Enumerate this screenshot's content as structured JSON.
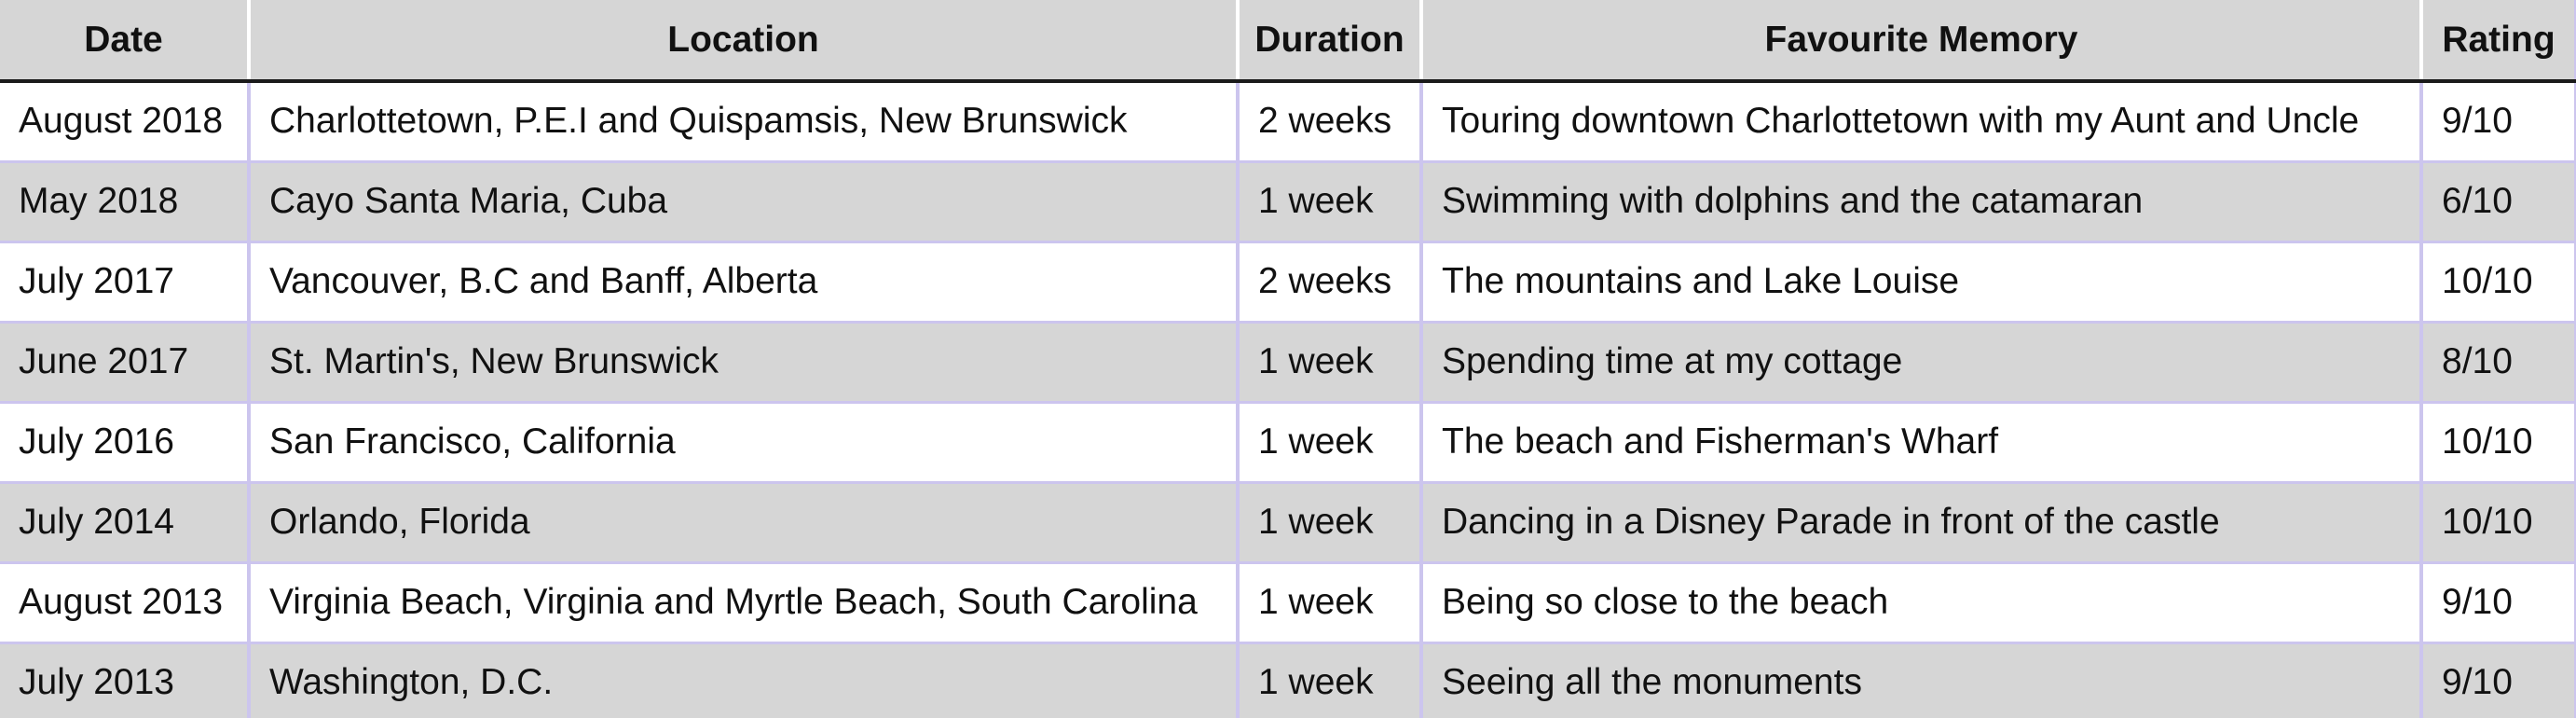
{
  "table": {
    "headers": [
      "Date",
      "Location",
      "Duration",
      "Favourite Memory",
      "Rating"
    ],
    "rows": [
      [
        "August 2018",
        "Charlottetown, P.E.I and Quispamsis, New Brunswick",
        "2 weeks",
        "Touring downtown Charlottetown with my Aunt and Uncle",
        "9/10"
      ],
      [
        "May 2018",
        "Cayo Santa Maria, Cuba",
        "1 week",
        "Swimming with dolphins and the catamaran",
        "6/10"
      ],
      [
        "July 2017",
        "Vancouver, B.C and Banff, Alberta",
        "2 weeks",
        "The mountains and Lake Louise",
        "10/10"
      ],
      [
        "June 2017",
        "St. Martin's, New Brunswick",
        "1 week",
        "Spending time at my cottage",
        "8/10"
      ],
      [
        "July 2016",
        "San Francisco, California",
        "1 week",
        "The beach and Fisherman's Wharf",
        "10/10"
      ],
      [
        "July 2014",
        "Orlando, Florida",
        "1 week",
        "Dancing in a Disney Parade in front of the castle",
        "10/10"
      ],
      [
        "August 2013",
        "Virginia Beach, Virginia and Myrtle Beach, South Carolina",
        "1 week",
        "Being so close to the beach",
        "9/10"
      ],
      [
        "July 2013",
        "Washington, D.C.",
        "1 week",
        "Seeing all the monuments",
        "9/10"
      ]
    ]
  },
  "colors": {
    "header_bg": "#d6d6d6",
    "stripe_bg": "#d6d6d6",
    "row_bg": "#ffffff",
    "grid_line": "#ccc5ee",
    "header_rule": "#1a1a1a"
  }
}
